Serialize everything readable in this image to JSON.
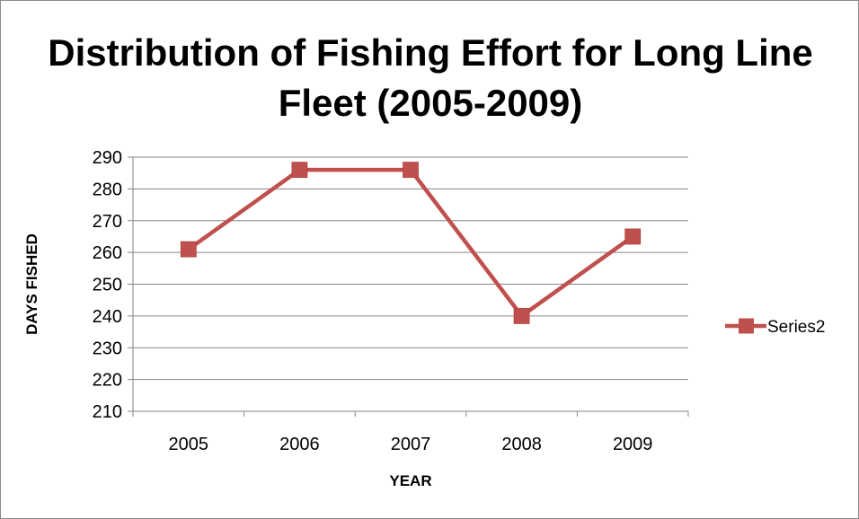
{
  "chart_data": {
    "type": "line",
    "title": "Distribution of Fishing Effort for Long Line Fleet (2005-2009)",
    "xlabel": "YEAR",
    "ylabel": "DAYS FISHED",
    "categories": [
      "2005",
      "2006",
      "2007",
      "2008",
      "2009"
    ],
    "ylim": [
      210,
      290
    ],
    "yticks": [
      210,
      220,
      230,
      240,
      250,
      260,
      270,
      280,
      290
    ],
    "grid": true,
    "legend_position": "right",
    "series": [
      {
        "name": "Series2",
        "color": "#C0504D",
        "marker": "square",
        "values": [
          261,
          286,
          286,
          240,
          265
        ]
      }
    ]
  }
}
